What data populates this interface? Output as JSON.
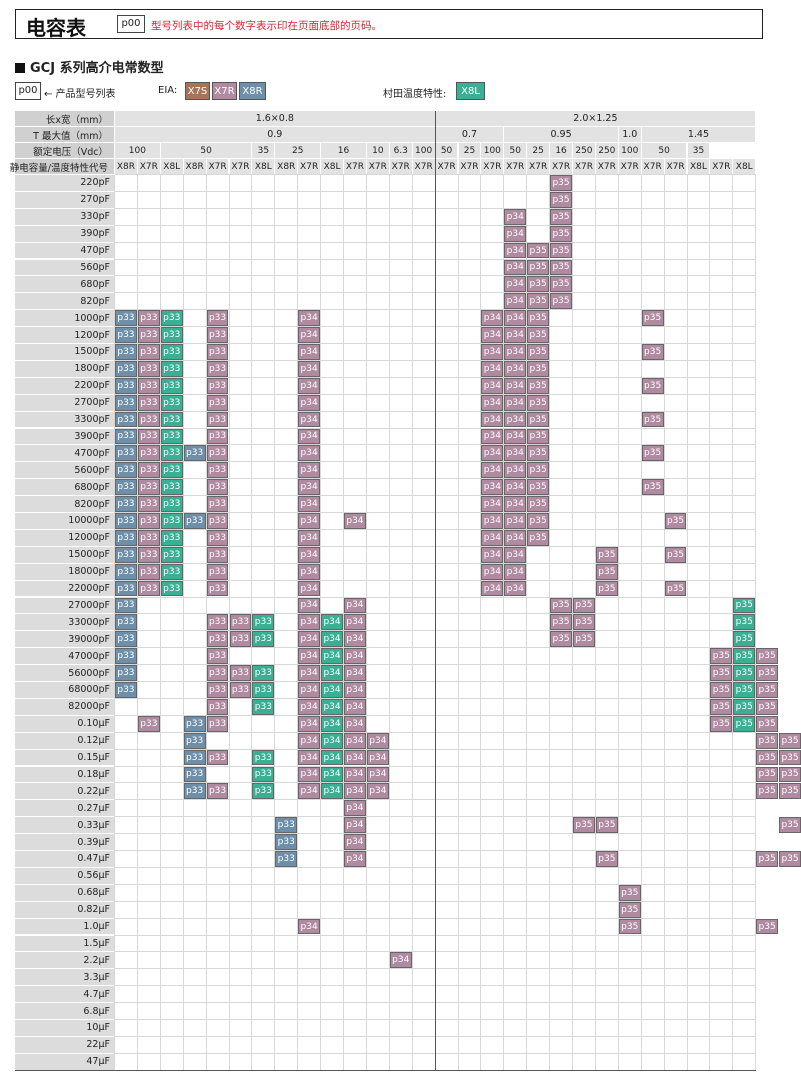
{
  "header": {
    "title": "电容表",
    "tag": "p00",
    "note": "型号列表中的每个数字表示印在页面底部的页码。"
  },
  "section_title": "GCJ 系列高介电常数型",
  "legend": {
    "page_box": "p00",
    "page_desc": "← 产品型号列表",
    "eia_label": "EIA:",
    "eia_items": [
      {
        "label": "X7S",
        "color": "#a9735a"
      },
      {
        "label": "X7R",
        "color": "#b08aa0"
      },
      {
        "label": "X8R",
        "color": "#6e8fa9"
      }
    ],
    "murata_label": "村田温度特性:",
    "murata_items": [
      {
        "label": "X8L",
        "color": "#3aaf94"
      }
    ]
  },
  "colors": {
    "X7R": "#b08aa0",
    "X8R": "#6e8fa9",
    "X8L": "#3aaf94",
    "X7S": "#a9735a"
  },
  "table": {
    "row_labels": {
      "size": "长x宽（mm）",
      "tmax": "T 最大值（mm）",
      "voltage": "额定电压（Vdc）",
      "char": "静电容量/温度特性代号"
    },
    "sizes": [
      "1.6×0.8",
      "2.0×1.25"
    ],
    "thickness": [
      "0.9",
      "0.7",
      "0.95",
      "1.0",
      "1.45"
    ],
    "voltages": [
      "100",
      "50",
      "35",
      "25",
      "16",
      "10",
      "6.3",
      "100",
      "50",
      "25",
      "100",
      "50",
      "25",
      "16",
      "250",
      "250",
      "100",
      "50",
      "35"
    ],
    "chars": [
      "X8R",
      "X7R",
      "X8L",
      "X8R",
      "X7R",
      "X7R",
      "X8L",
      "X8R",
      "X7R",
      "X8L",
      "X7R",
      "X7R",
      "X7R",
      "X7R",
      "X7R",
      "X7R",
      "X7R",
      "X7R",
      "X7R",
      "X7R",
      "X7R",
      "X7R",
      "X7R",
      "X7R",
      "X7R",
      "X8L",
      "X7R",
      "X8L"
    ],
    "capacitances": [
      "220pF",
      "270pF",
      "330pF",
      "390pF",
      "470pF",
      "560pF",
      "680pF",
      "820pF",
      "1000pF",
      "1200pF",
      "1500pF",
      "1800pF",
      "2200pF",
      "2700pF",
      "3300pF",
      "3900pF",
      "4700pF",
      "5600pF",
      "6800pF",
      "8200pF",
      "10000pF",
      "12000pF",
      "15000pF",
      "18000pF",
      "22000pF",
      "27000pF",
      "33000pF",
      "39000pF",
      "47000pF",
      "56000pF",
      "68000pF",
      "82000pF",
      "0.10μF",
      "0.12μF",
      "0.15μF",
      "0.18μF",
      "0.22μF",
      "0.27μF",
      "0.33μF",
      "0.39μF",
      "0.47μF",
      "0.56μF",
      "0.68μF",
      "0.82μF",
      "1.0μF",
      "1.5μF",
      "2.2μF",
      "3.3μF",
      "4.7μF",
      "6.8μF",
      "10μF",
      "22μF",
      "47μF"
    ],
    "filled": {
      "220pF": [
        "19:p35"
      ],
      "270pF": [
        "19:p35"
      ],
      "330pF": [
        "17:p34",
        "19:p35"
      ],
      "390pF": [
        "17:p34",
        "19:p35"
      ],
      "470pF": [
        "17:p34",
        "18:p35",
        "19:p35"
      ],
      "560pF": [
        "17:p34",
        "18:p35",
        "19:p35"
      ],
      "680pF": [
        "17:p34",
        "18:p35",
        "19:p35"
      ],
      "820pF": [
        "17:p34",
        "18:p35",
        "19:p35"
      ],
      "1000pF": [
        "0:p33",
        "1:p33",
        "2:p33",
        "4:p33",
        "8:p34",
        "16:p34",
        "17:p34",
        "18:p35",
        "23:p35"
      ],
      "1200pF": [
        "0:p33",
        "1:p33",
        "2:p33",
        "4:p33",
        "8:p34",
        "16:p34",
        "17:p34",
        "18:p35"
      ],
      "1500pF": [
        "0:p33",
        "1:p33",
        "2:p33",
        "4:p33",
        "8:p34",
        "16:p34",
        "17:p34",
        "18:p35",
        "23:p35"
      ],
      "1800pF": [
        "0:p33",
        "1:p33",
        "2:p33",
        "4:p33",
        "8:p34",
        "16:p34",
        "17:p34",
        "18:p35"
      ],
      "2200pF": [
        "0:p33",
        "1:p33",
        "2:p33",
        "4:p33",
        "8:p34",
        "16:p34",
        "17:p34",
        "18:p35",
        "23:p35"
      ],
      "2700pF": [
        "0:p33",
        "1:p33",
        "2:p33",
        "4:p33",
        "8:p34",
        "16:p34",
        "17:p34",
        "18:p35"
      ],
      "3300pF": [
        "0:p33",
        "1:p33",
        "2:p33",
        "4:p33",
        "8:p34",
        "16:p34",
        "17:p34",
        "18:p35",
        "23:p35"
      ],
      "3900pF": [
        "0:p33",
        "1:p33",
        "2:p33",
        "4:p33",
        "8:p34",
        "16:p34",
        "17:p34",
        "18:p35"
      ],
      "4700pF": [
        "0:p33",
        "1:p33",
        "2:p33",
        "3:p33",
        "4:p33",
        "8:p34",
        "16:p34",
        "17:p34",
        "18:p35",
        "23:p35"
      ],
      "5600pF": [
        "0:p33",
        "1:p33",
        "2:p33",
        "4:p33",
        "8:p34",
        "16:p34",
        "17:p34",
        "18:p35"
      ],
      "6800pF": [
        "0:p33",
        "1:p33",
        "2:p33",
        "4:p33",
        "8:p34",
        "16:p34",
        "17:p34",
        "18:p35",
        "23:p35"
      ],
      "8200pF": [
        "0:p33",
        "1:p33",
        "2:p33",
        "4:p33",
        "8:p34",
        "16:p34",
        "17:p34",
        "18:p35"
      ],
      "10000pF": [
        "0:p33",
        "1:p33",
        "2:p33",
        "3:p33",
        "4:p33",
        "8:p34",
        "10:p34",
        "16:p34",
        "17:p34",
        "18:p35",
        "24:p35"
      ],
      "12000pF": [
        "0:p33",
        "1:p33",
        "2:p33",
        "4:p33",
        "8:p34",
        "16:p34",
        "17:p34",
        "18:p35"
      ],
      "15000pF": [
        "0:p33",
        "1:p33",
        "2:p33",
        "4:p33",
        "8:p34",
        "16:p34",
        "17:p34",
        "21:p35",
        "24:p35"
      ],
      "18000pF": [
        "0:p33",
        "1:p33",
        "2:p33",
        "4:p33",
        "8:p34",
        "16:p34",
        "17:p34",
        "21:p35"
      ],
      "22000pF": [
        "0:p33",
        "1:p33",
        "2:p33",
        "4:p33",
        "8:p34",
        "16:p34",
        "17:p34",
        "21:p35",
        "24:p35"
      ],
      "27000pF": [
        "0:p33",
        "8:p34",
        "10:p34",
        "19:p35",
        "20:p35",
        "27:p35"
      ],
      "33000pF": [
        "0:p33",
        "4:p33",
        "5:p33",
        "6:p33",
        "8:p34",
        "9:p34",
        "10:p34",
        "19:p35",
        "20:p35",
        "27:p35"
      ],
      "39000pF": [
        "0:p33",
        "4:p33",
        "5:p33",
        "6:p33",
        "8:p34",
        "9:p34",
        "10:p34",
        "19:p35",
        "20:p35",
        "27:p35"
      ],
      "47000pF": [
        "0:p33",
        "4:p33",
        "8:p34",
        "9:p34",
        "10:p34",
        "26:p35",
        "27:p35",
        "28:p35"
      ],
      "56000pF": [
        "0:p33",
        "4:p33",
        "5:p33",
        "6:p33",
        "8:p34",
        "9:p34",
        "10:p34",
        "26:p35",
        "27:p35",
        "28:p35"
      ],
      "68000pF": [
        "0:p33",
        "4:p33",
        "5:p33",
        "6:p33",
        "8:p34",
        "9:p34",
        "10:p34",
        "26:p35",
        "27:p35",
        "28:p35"
      ],
      "82000pF": [
        "4:p33",
        "6:p33",
        "8:p34",
        "9:p34",
        "10:p34",
        "26:p35",
        "27:p35",
        "28:p35"
      ],
      "0.10μF": [
        "1:p33",
        "3:p33",
        "4:p33",
        "8:p34",
        "9:p34",
        "10:p34",
        "26:p35",
        "27:p35",
        "28:p35"
      ],
      "0.12μF": [
        "3:p33",
        "8:p34",
        "9:p34",
        "10:p34",
        "11:p34",
        "28:p35",
        "29:p35"
      ],
      "0.15μF": [
        "3:p33",
        "4:p33",
        "6:p33",
        "8:p34",
        "9:p34",
        "10:p34",
        "11:p34",
        "28:p35",
        "29:p35"
      ],
      "0.18μF": [
        "3:p33",
        "6:p33",
        "8:p34",
        "9:p34",
        "10:p34",
        "11:p34",
        "28:p35",
        "29:p35"
      ],
      "0.22μF": [
        "3:p33",
        "4:p33",
        "6:p33",
        "8:p34",
        "9:p34",
        "10:p34",
        "11:p34",
        "28:p35",
        "29:p35"
      ],
      "0.27μF": [
        "10:p34"
      ],
      "0.33μF": [
        "7:p33",
        "10:p34",
        "20:p35",
        "21:p35",
        "29:p35"
      ],
      "0.39μF": [
        "7:p33",
        "10:p34"
      ],
      "0.47μF": [
        "7:p33",
        "10:p34",
        "21:p35",
        "28:p35",
        "29:p35"
      ],
      "0.56μF": [],
      "0.68μF": [
        "22:p35"
      ],
      "0.82μF": [
        "22:p35"
      ],
      "1.0μF": [
        "8:p34",
        "22:p35",
        "28:p35"
      ],
      "1.5μF": [],
      "2.2μF": [
        "12:p34"
      ],
      "3.3μF": [],
      "4.7μF": [],
      "6.8μF": [],
      "10μF": [],
      "22μF": [],
      "47μF": []
    }
  }
}
